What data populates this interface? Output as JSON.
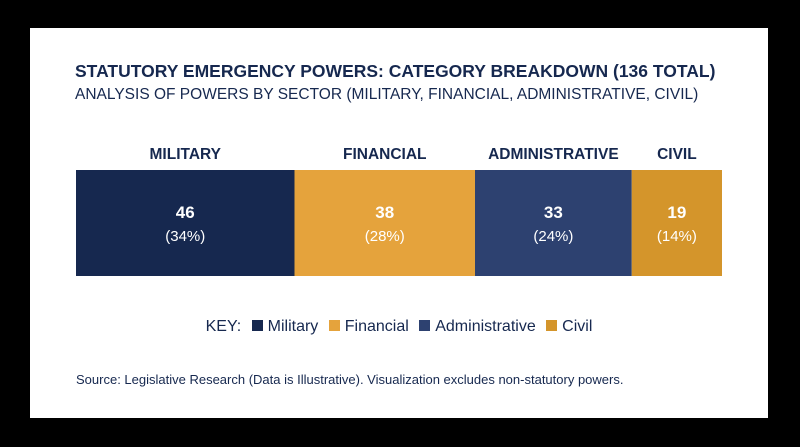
{
  "title": "STATUTORY EMERGENCY POWERS: CATEGORY BREAKDOWN (136 TOTAL)",
  "subtitle": "ANALYSIS OF POWERS BY SECTOR (MILITARY, FINANCIAL, ADMINISTRATIVE, CIVIL)",
  "key_label": "KEY:",
  "source": "Source: Legislative Research (Data is Illustrative). Visualization excludes non-statutory powers.",
  "chart_data": {
    "type": "bar",
    "stacked": "horizontal-100-percent",
    "total": 136,
    "categories": [
      "MILITARY",
      "FINANCIAL",
      "ADMINISTRATIVE",
      "CIVIL"
    ],
    "values": [
      46,
      38,
      33,
      19
    ],
    "percent_labels": [
      "(34%)",
      "(28%)",
      "(24%)",
      "(14%)"
    ],
    "colors": [
      "#16284f",
      "#e5a33c",
      "#2d4170",
      "#d4952b"
    ],
    "legend": {
      "position": "bottom-center",
      "items": [
        "Military",
        "Financial",
        "Administrative",
        "Civil"
      ]
    },
    "grid": false
  }
}
